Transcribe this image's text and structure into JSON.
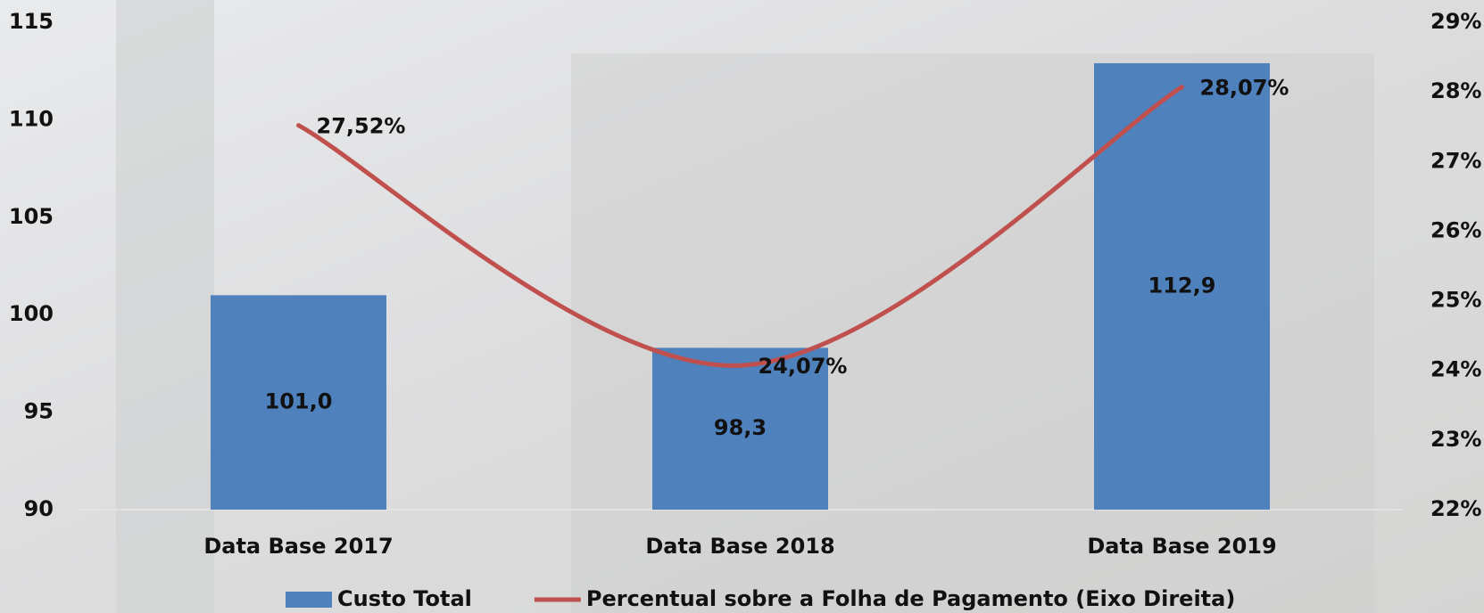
{
  "chart_data": {
    "type": "bar",
    "categories": [
      "Data Base 2017",
      "Data Base 2018",
      "Data Base 2019"
    ],
    "series": [
      {
        "name": "Custo Total",
        "type": "bar",
        "color": "#4f81bd",
        "values": [
          101.0,
          98.3,
          112.9
        ],
        "value_labels": [
          "101,0",
          "98,3",
          "112,9"
        ]
      },
      {
        "name": "Percentual sobre a Folha de Pagamento (Eixo Direita)",
        "type": "line",
        "axis": "y2",
        "color": "#c0504d",
        "values": [
          27.52,
          24.07,
          28.07
        ],
        "value_labels": [
          "27,52%",
          "24,07%",
          "28,07%"
        ]
      }
    ],
    "ylim": [
      90,
      115
    ],
    "yticks": [
      90,
      95,
      100,
      105,
      110,
      115
    ],
    "y2lim": [
      22,
      29
    ],
    "y2ticks": [
      {
        "value": 22,
        "label": "22%"
      },
      {
        "value": 23,
        "label": "23%"
      },
      {
        "value": 24,
        "label": "24%"
      },
      {
        "value": 25,
        "label": "25%"
      },
      {
        "value": 26,
        "label": "26%"
      },
      {
        "value": 27,
        "label": "27%"
      },
      {
        "value": 28,
        "label": "28%"
      },
      {
        "value": 29,
        "label": "29%"
      }
    ],
    "grid": false
  }
}
